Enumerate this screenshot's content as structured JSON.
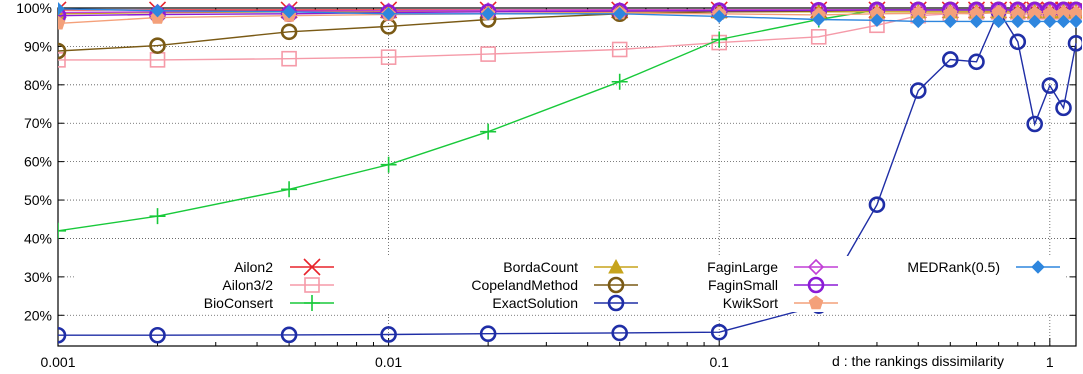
{
  "chart_data": {
    "type": "line",
    "x_scale": "log",
    "xlim": [
      0.001,
      1.2
    ],
    "ylim": [
      12,
      100
    ],
    "grid": true,
    "legend": "center-right",
    "xlabel": "d : the rankings dissimilarity",
    "ylabel": "",
    "x_ticks": [
      {
        "value": 0.001,
        "label": "0.001"
      },
      {
        "value": 0.01,
        "label": "0.01"
      },
      {
        "value": 0.1,
        "label": "0.1"
      },
      {
        "value": 1,
        "label": "1"
      }
    ],
    "y_ticks": [
      {
        "value": 20,
        "label": "20%"
      },
      {
        "value": 30,
        "label": "30%"
      },
      {
        "value": 40,
        "label": "40%"
      },
      {
        "value": 50,
        "label": "50%"
      },
      {
        "value": 60,
        "label": "60%"
      },
      {
        "value": 70,
        "label": "70%"
      },
      {
        "value": 80,
        "label": "80%"
      },
      {
        "value": 90,
        "label": "90%"
      },
      {
        "value": 100,
        "label": "100%"
      }
    ],
    "series": [
      {
        "name": "Ailon2",
        "color": "#e8242c",
        "marker": "x",
        "points": [
          [
            0.001,
            99.5
          ],
          [
            0.002,
            99.5
          ],
          [
            0.005,
            99.5
          ],
          [
            0.01,
            99.5
          ],
          [
            0.02,
            99.5
          ],
          [
            0.05,
            99.5
          ],
          [
            0.1,
            99.5
          ],
          [
            0.2,
            99.5
          ],
          [
            0.3,
            99.5
          ],
          [
            0.4,
            99.5
          ],
          [
            0.5,
            99.5
          ],
          [
            0.6,
            99.5
          ],
          [
            0.7,
            99.5
          ],
          [
            0.8,
            99.5
          ],
          [
            0.9,
            99.5
          ],
          [
            1.0,
            99.5
          ],
          [
            1.1,
            99.5
          ],
          [
            1.2,
            99.5
          ]
        ]
      },
      {
        "name": "Ailon3/2",
        "color": "#f59aa8",
        "marker": "square",
        "points": [
          [
            0.001,
            86.5
          ],
          [
            0.002,
            86.5
          ],
          [
            0.005,
            86.8
          ],
          [
            0.01,
            87.2
          ],
          [
            0.02,
            88
          ],
          [
            0.05,
            89.2
          ],
          [
            0.1,
            91
          ],
          [
            0.2,
            92.5
          ],
          [
            0.3,
            95.5
          ],
          [
            0.4,
            98
          ],
          [
            0.5,
            98.5
          ],
          [
            0.6,
            99
          ],
          [
            0.7,
            99
          ],
          [
            0.8,
            99
          ],
          [
            0.9,
            99
          ],
          [
            1.0,
            99
          ],
          [
            1.1,
            99
          ],
          [
            1.2,
            99
          ]
        ]
      },
      {
        "name": "BioConsert",
        "color": "#18c93a",
        "marker": "plus",
        "points": [
          [
            0.001,
            42
          ],
          [
            0.002,
            45.8
          ],
          [
            0.005,
            52.8
          ],
          [
            0.01,
            59.2
          ],
          [
            0.02,
            67.8
          ],
          [
            0.05,
            80.8
          ],
          [
            0.1,
            91.8
          ],
          [
            0.2,
            97
          ],
          [
            0.3,
            99.5
          ],
          [
            0.4,
            99.5
          ],
          [
            0.5,
            99.5
          ],
          [
            0.6,
            99.5
          ],
          [
            0.7,
            99.5
          ],
          [
            0.8,
            99.5
          ],
          [
            0.9,
            99.5
          ],
          [
            1.0,
            99.5
          ],
          [
            1.1,
            99.5
          ],
          [
            1.2,
            99.5
          ]
        ]
      },
      {
        "name": "BordaCount",
        "color": "#c7a41c",
        "marker": "triangle",
        "points": [
          [
            0.001,
            98.5
          ],
          [
            0.002,
            98.8
          ],
          [
            0.005,
            99
          ],
          [
            0.01,
            99
          ],
          [
            0.02,
            99
          ],
          [
            0.05,
            99
          ],
          [
            0.1,
            99
          ],
          [
            0.2,
            99
          ],
          [
            0.3,
            99
          ],
          [
            0.4,
            99
          ],
          [
            0.5,
            99
          ],
          [
            0.6,
            99
          ],
          [
            0.7,
            99
          ],
          [
            0.8,
            99
          ],
          [
            0.9,
            99
          ],
          [
            1.0,
            99
          ],
          [
            1.1,
            99
          ],
          [
            1.2,
            99
          ]
        ]
      },
      {
        "name": "CopelandMethod",
        "color": "#7a5a15",
        "marker": "circle",
        "points": [
          [
            0.001,
            88.8
          ],
          [
            0.002,
            90.2
          ],
          [
            0.005,
            93.8
          ],
          [
            0.01,
            95.2
          ],
          [
            0.02,
            97
          ],
          [
            0.05,
            98.5
          ],
          [
            0.1,
            99
          ],
          [
            0.2,
            99.2
          ],
          [
            0.3,
            99.5
          ],
          [
            0.4,
            99.5
          ],
          [
            0.5,
            99.5
          ],
          [
            0.6,
            99.5
          ],
          [
            0.7,
            99.5
          ],
          [
            0.8,
            99.5
          ],
          [
            0.9,
            99.5
          ],
          [
            1.0,
            99.5
          ],
          [
            1.1,
            99.5
          ],
          [
            1.2,
            99.5
          ]
        ]
      },
      {
        "name": "ExactSolution",
        "color": "#1f2ea6",
        "marker": "circle",
        "points": [
          [
            0.001,
            14.8
          ],
          [
            0.002,
            14.8
          ],
          [
            0.005,
            14.9
          ],
          [
            0.01,
            15
          ],
          [
            0.02,
            15.2
          ],
          [
            0.05,
            15.4
          ],
          [
            0.1,
            15.6
          ],
          [
            0.2,
            22.5
          ],
          [
            0.3,
            48.8
          ],
          [
            0.4,
            78.5
          ],
          [
            0.5,
            86.6
          ],
          [
            0.6,
            86
          ],
          [
            0.7,
            99.3
          ],
          [
            0.8,
            91.2
          ],
          [
            0.9,
            69.8
          ],
          [
            1.0,
            79.8
          ],
          [
            1.1,
            74
          ],
          [
            1.2,
            90.8
          ]
        ]
      },
      {
        "name": "FaginLarge",
        "color": "#c13fd6",
        "marker": "diamond",
        "points": [
          [
            0.001,
            98.8
          ],
          [
            0.002,
            99
          ],
          [
            0.005,
            99.2
          ],
          [
            0.01,
            99.3
          ],
          [
            0.02,
            99.4
          ],
          [
            0.05,
            99.5
          ],
          [
            0.1,
            99.5
          ],
          [
            0.2,
            99.5
          ],
          [
            0.3,
            99.5
          ],
          [
            0.4,
            99.5
          ],
          [
            0.5,
            99.5
          ],
          [
            0.6,
            99.5
          ],
          [
            0.7,
            99.5
          ],
          [
            0.8,
            99.5
          ],
          [
            0.9,
            99.5
          ],
          [
            1.0,
            99.5
          ],
          [
            1.1,
            99.5
          ],
          [
            1.2,
            99.5
          ]
        ]
      },
      {
        "name": "FaginSmall",
        "color": "#8b1bd6",
        "marker": "circle",
        "points": [
          [
            0.001,
            98
          ],
          [
            0.002,
            98.3
          ],
          [
            0.005,
            98.5
          ],
          [
            0.01,
            98.8
          ],
          [
            0.02,
            99
          ],
          [
            0.05,
            99.2
          ],
          [
            0.1,
            99.3
          ],
          [
            0.2,
            99.4
          ],
          [
            0.3,
            99.5
          ],
          [
            0.4,
            99.5
          ],
          [
            0.5,
            99.5
          ],
          [
            0.6,
            99.5
          ],
          [
            0.7,
            99.5
          ],
          [
            0.8,
            99.5
          ],
          [
            0.9,
            99.5
          ],
          [
            1.0,
            99.5
          ],
          [
            1.1,
            99.5
          ],
          [
            1.2,
            99.5
          ]
        ]
      },
      {
        "name": "KwikSort",
        "color": "#f4a07a",
        "marker": "pentagon",
        "points": [
          [
            0.001,
            96
          ],
          [
            0.002,
            97.5
          ],
          [
            0.005,
            98
          ],
          [
            0.01,
            98.3
          ],
          [
            0.02,
            98.5
          ],
          [
            0.05,
            98.7
          ],
          [
            0.1,
            98.5
          ],
          [
            0.2,
            98.2
          ],
          [
            0.3,
            98.5
          ],
          [
            0.4,
            98.6
          ],
          [
            0.5,
            98.6
          ],
          [
            0.6,
            98.5
          ],
          [
            0.7,
            98.8
          ],
          [
            0.8,
            98.4
          ],
          [
            0.9,
            98.5
          ],
          [
            1.0,
            98.6
          ],
          [
            1.1,
            98.6
          ],
          [
            1.2,
            98.6
          ]
        ]
      },
      {
        "name": "MEDRank(0.5)",
        "color": "#2e86de",
        "marker": "filled-diamond",
        "points": [
          [
            0.001,
            99.8
          ],
          [
            0.002,
            99.3
          ],
          [
            0.005,
            99
          ],
          [
            0.01,
            98.5
          ],
          [
            0.02,
            98.5
          ],
          [
            0.05,
            98.5
          ],
          [
            0.1,
            97.8
          ],
          [
            0.2,
            97
          ],
          [
            0.3,
            96.8
          ],
          [
            0.4,
            96.5
          ],
          [
            0.5,
            96.5
          ],
          [
            0.6,
            96.5
          ],
          [
            0.7,
            96.5
          ],
          [
            0.8,
            96.5
          ],
          [
            0.9,
            96.5
          ],
          [
            1.0,
            96.5
          ],
          [
            1.1,
            96.5
          ],
          [
            1.2,
            96.5
          ]
        ]
      }
    ]
  }
}
